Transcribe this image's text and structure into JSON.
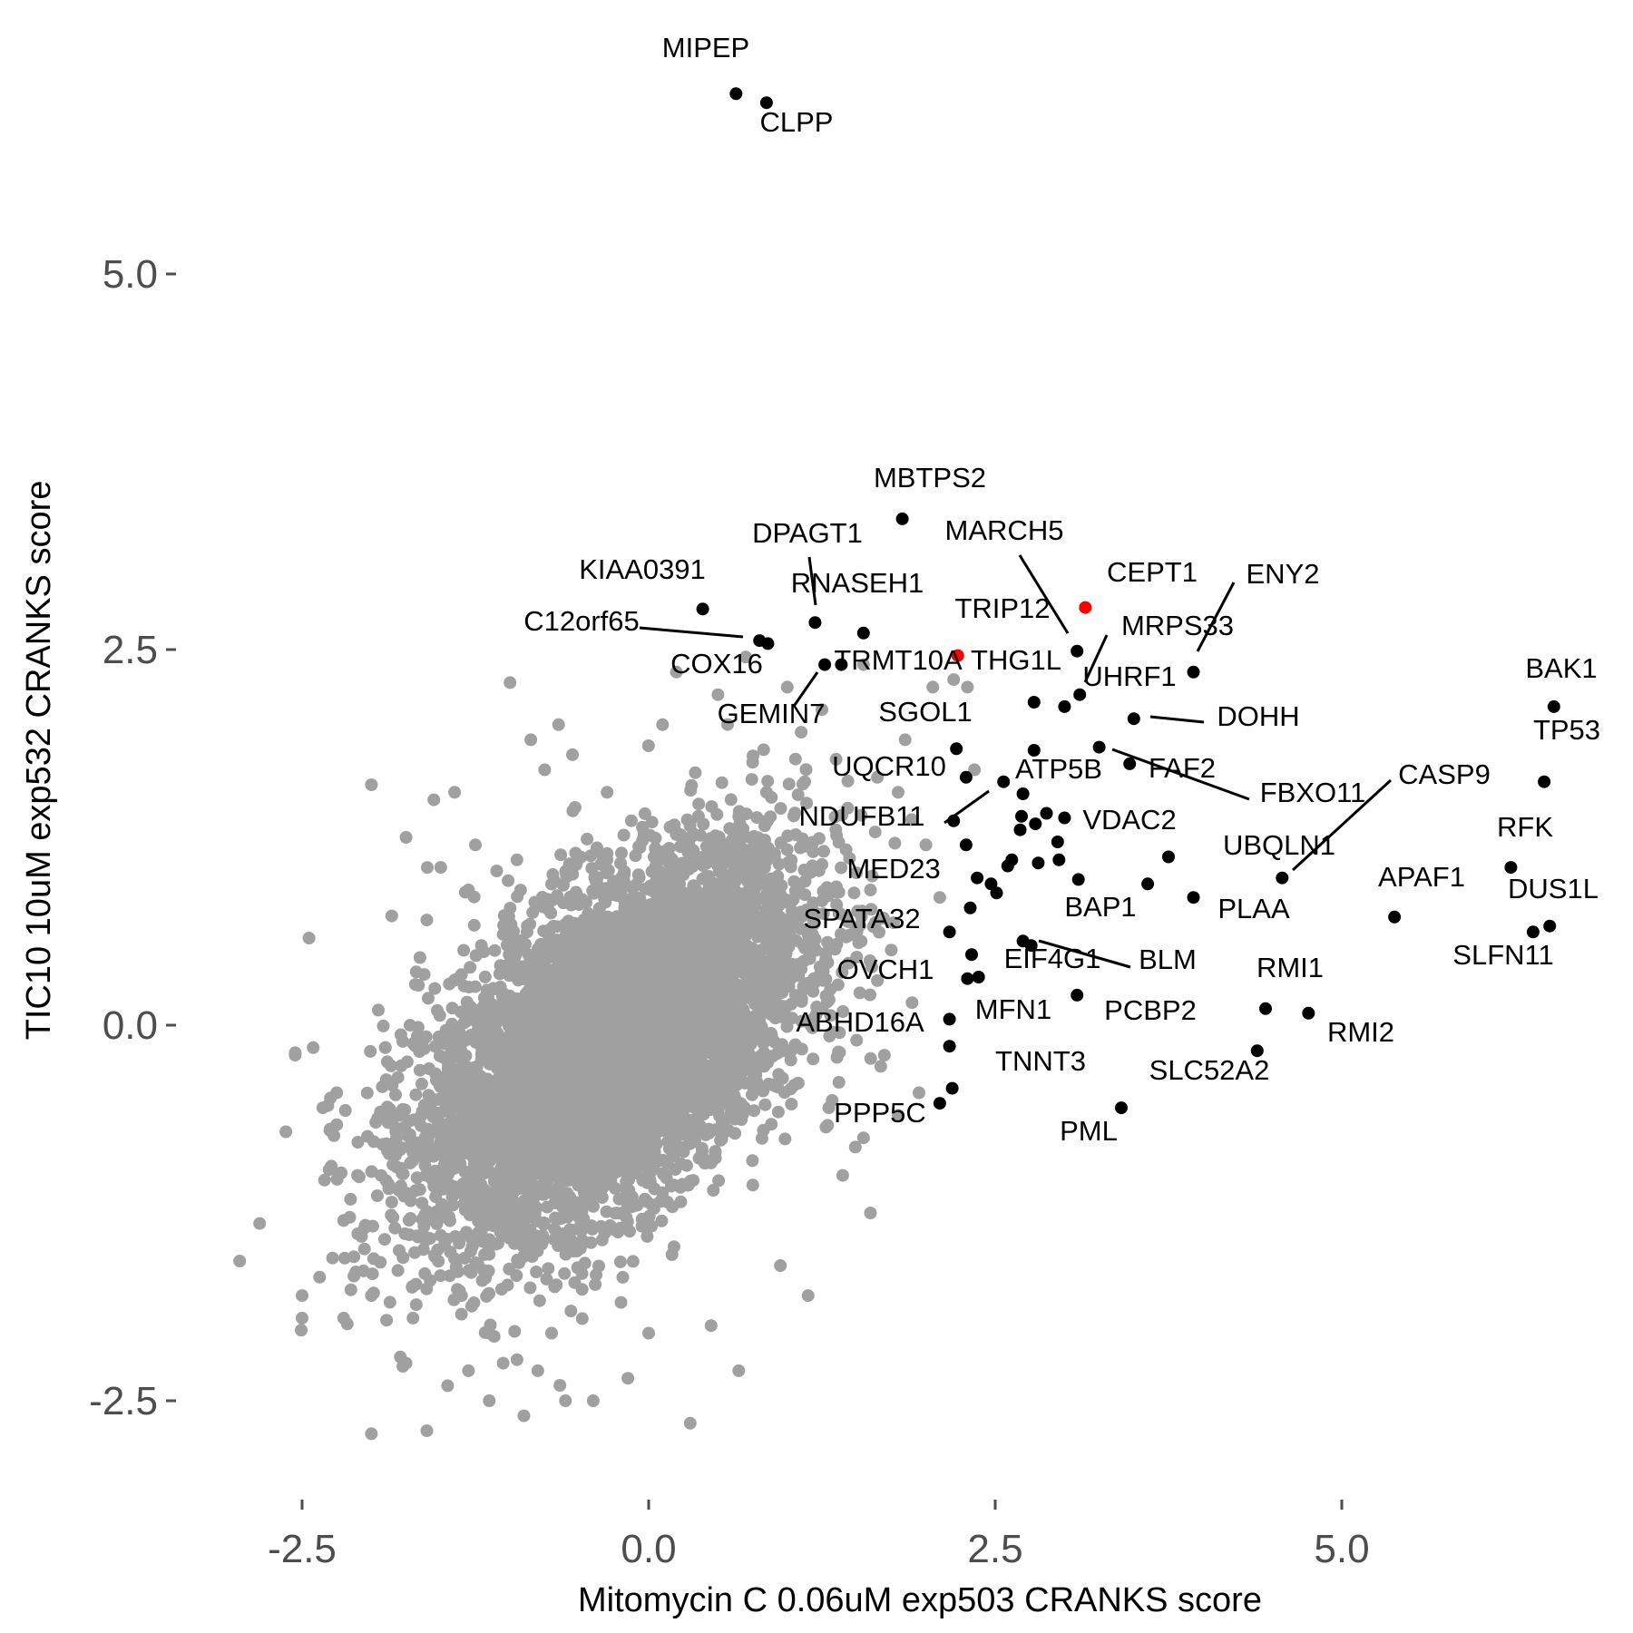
{
  "chart_data": {
    "type": "scatter",
    "xlabel": "Mitomycin C 0.06uM exp503 CRANKS score",
    "ylabel": "TIC10 10uM exp532 CRANKS score",
    "xlim": [
      -3.1,
      6.8
    ],
    "ylim": [
      -3.1,
      6.6
    ],
    "x_ticks": [
      {
        "value": -2.5,
        "label": "-2.5"
      },
      {
        "value": 0.0,
        "label": "0.0"
      },
      {
        "value": 2.5,
        "label": "2.5"
      },
      {
        "value": 5.0,
        "label": "5.0"
      }
    ],
    "y_ticks": [
      {
        "value": -2.5,
        "label": "-2.5"
      },
      {
        "value": 0.0,
        "label": "0.0"
      },
      {
        "value": 2.5,
        "label": "2.5"
      },
      {
        "value": 5.0,
        "label": "5.0"
      }
    ],
    "grid": false,
    "colors": {
      "background": "#ffffff",
      "bulk": "#a0a0a0",
      "highlight": "#000000",
      "special": "#ff0000"
    },
    "background_cloud": {
      "description_points": "thousands of unlabeled grey genes",
      "outliers": [
        [
          -2.95,
          -1.57
        ],
        [
          -2.5,
          -1.8
        ],
        [
          -2.5,
          -1.95
        ],
        [
          -2.45,
          0.58
        ],
        [
          -2.42,
          -0.15
        ],
        [
          -2.35,
          -0.55
        ],
        [
          -2.3,
          -0.7
        ],
        [
          -2.28,
          -1.55
        ],
        [
          -2.2,
          -1.95
        ],
        [
          -2.2,
          -1.3
        ],
        [
          -2.1,
          -1.0
        ],
        [
          -2.05,
          -1.35
        ],
        [
          -2.0,
          -1.8
        ],
        [
          -2.0,
          1.6
        ],
        [
          -2.0,
          -2.72
        ],
        [
          -1.9,
          -0.15
        ],
        [
          -1.85,
          -0.4
        ],
        [
          -1.8,
          -1.5
        ],
        [
          -1.8,
          -0.6
        ],
        [
          -1.8,
          -1.1
        ],
        [
          -1.75,
          -2.25
        ],
        [
          -1.75,
          1.25
        ],
        [
          -1.7,
          -1.95
        ],
        [
          -1.7,
          -0.9
        ],
        [
          -1.65,
          -0.3
        ],
        [
          -1.6,
          -2.7
        ],
        [
          -1.6,
          0.7
        ],
        [
          -1.55,
          1.5
        ],
        [
          -1.5,
          -1.4
        ],
        [
          -1.5,
          1.05
        ],
        [
          -1.45,
          -2.4
        ],
        [
          -1.4,
          0.3
        ],
        [
          -1.35,
          -1.8
        ],
        [
          -1.3,
          -2.3
        ],
        [
          -1.3,
          0.9
        ],
        [
          -1.25,
          1.2
        ],
        [
          -1.2,
          -1.7
        ],
        [
          -1.15,
          -2.05
        ],
        [
          -1.15,
          -2.5
        ],
        [
          -1.1,
          -0.8
        ],
        [
          -1.05,
          -2.25
        ],
        [
          -1.0,
          2.28
        ],
        [
          -0.95,
          1.1
        ],
        [
          -0.9,
          -2.6
        ],
        [
          -0.85,
          1.9
        ],
        [
          -0.8,
          -2.3
        ],
        [
          -0.75,
          1.7
        ],
        [
          -0.7,
          -2.05
        ],
        [
          -0.65,
          2.0
        ],
        [
          -0.55,
          1.8
        ],
        [
          -0.4,
          -2.5
        ],
        [
          -0.3,
          1.55
        ],
        [
          -0.15,
          -2.35
        ],
        [
          0.0,
          -2.05
        ],
        [
          0.1,
          2.0
        ],
        [
          0.3,
          -2.65
        ],
        [
          0.45,
          -2.0
        ],
        [
          0.5,
          2.2
        ],
        [
          0.6,
          1.3
        ],
        [
          0.75,
          1.75
        ],
        [
          0.85,
          1.55
        ],
        [
          0.95,
          -1.6
        ],
        [
          1.05,
          -0.4
        ],
        [
          1.1,
          1.95
        ],
        [
          1.15,
          -1.8
        ],
        [
          1.25,
          0.3
        ],
        [
          1.3,
          -0.55
        ],
        [
          1.35,
          1.3
        ],
        [
          1.4,
          -1.0
        ],
        [
          1.5,
          -0.1
        ],
        [
          1.55,
          -0.75
        ],
        [
          1.6,
          0.9
        ],
        [
          1.65,
          1.65
        ],
        [
          1.7,
          -0.2
        ],
        [
          1.75,
          0.5
        ],
        [
          1.8,
          -0.6
        ],
        [
          1.85,
          1.9
        ],
        [
          1.9,
          0.15
        ],
        [
          1.95,
          -0.45
        ],
        [
          2.0,
          1.2
        ],
        [
          2.05,
          2.25
        ],
        [
          1.55,
          2.4
        ],
        [
          1.0,
          2.25
        ],
        [
          0.2,
          2.35
        ],
        [
          0.7,
          2.45
        ],
        [
          1.25,
          2.1
        ],
        [
          1.8,
          1.55
        ],
        [
          2.1,
          0.85
        ],
        [
          2.2,
          2.3
        ],
        [
          2.3,
          2.25
        ],
        [
          2.35,
          1.7
        ],
        [
          1.45,
          0.6
        ],
        [
          1.6,
          -1.25
        ],
        [
          0.65,
          -2.3
        ],
        [
          -0.6,
          -2.5
        ],
        [
          -2.55,
          -0.2
        ],
        [
          -2.25,
          -0.45
        ],
        [
          -1.95,
          0.1
        ],
        [
          -1.65,
          0.45
        ],
        [
          -1.4,
          1.55
        ]
      ]
    },
    "points": [
      {
        "label": "MIPEP",
        "x": 0.63,
        "y": 6.2,
        "color": "#000000"
      },
      {
        "label": "CLPP",
        "x": 0.85,
        "y": 6.14,
        "color": "#000000"
      },
      {
        "label": "MBTPS2",
        "x": 1.83,
        "y": 3.37,
        "color": "#000000"
      },
      {
        "label": "DPAGT1",
        "x": 1.2,
        "y": 2.68,
        "color": "#000000"
      },
      {
        "label": "KIAA0391",
        "x": 0.39,
        "y": 2.77,
        "color": "#000000"
      },
      {
        "label": "RNASEH1",
        "x": 1.55,
        "y": 2.61,
        "color": "#000000"
      },
      {
        "label": "C12orf65",
        "x": 0.8,
        "y": 2.56,
        "color": "#000000"
      },
      {
        "label": "COX16",
        "x": 0.86,
        "y": 2.54,
        "color": "#000000"
      },
      {
        "label": "GEMIN7",
        "x": 1.27,
        "y": 2.4,
        "color": "#000000"
      },
      {
        "label": "TRMT10A",
        "x": 1.39,
        "y": 2.4,
        "color": "#000000"
      },
      {
        "label": "MARCH5",
        "x": 3.09,
        "y": 2.49,
        "color": "#000000"
      },
      {
        "label": "CEPT1",
        "x": 3.15,
        "y": 2.78,
        "color": "#ff0000"
      },
      {
        "label": "TRIP12",
        "x": 2.23,
        "y": 2.46,
        "color": "#ff0000"
      },
      {
        "label": "ENY2",
        "x": 3.93,
        "y": 2.35,
        "color": "#000000"
      },
      {
        "label": "MRPS33",
        "x": 3.11,
        "y": 2.2,
        "color": "#000000"
      },
      {
        "label": "THG1L",
        "x": 2.78,
        "y": 2.15,
        "color": "#000000"
      },
      {
        "label": "UHRF1",
        "x": 3.0,
        "y": 2.12,
        "color": "#000000"
      },
      {
        "label": "BAK1",
        "x": 6.53,
        "y": 2.12,
        "color": "#000000"
      },
      {
        "label": "DOHH",
        "x": 3.5,
        "y": 2.04,
        "color": "#000000"
      },
      {
        "label": "SGOL1",
        "x": 2.22,
        "y": 1.84,
        "color": "#000000"
      },
      {
        "label": "FBXO11",
        "x": 3.25,
        "y": 1.85,
        "color": "#000000"
      },
      {
        "label": "FAF2",
        "x": 3.47,
        "y": 1.74,
        "color": "#000000"
      },
      {
        "label": "TP53",
        "x": 6.46,
        "y": 1.62,
        "color": "#000000"
      },
      {
        "label": "UQCR10",
        "x": 2.29,
        "y": 1.65,
        "color": "#000000"
      },
      {
        "label": "ATP5B",
        "x": 2.56,
        "y": 1.62,
        "color": "#000000"
      },
      {
        "label": "NDUFB11",
        "x": 2.2,
        "y": 1.36,
        "color": "#000000"
      },
      {
        "label": "CASP9",
        "x": 4.57,
        "y": 0.98,
        "color": "#000000"
      },
      {
        "label": "VDAC2",
        "x": 2.95,
        "y": 1.22,
        "color": "#000000"
      },
      {
        "label": "UBQLN1",
        "x": 3.75,
        "y": 1.12,
        "color": "#000000"
      },
      {
        "label": "RFK",
        "x": 6.22,
        "y": 1.05,
        "color": "#000000"
      },
      {
        "label": "MED23",
        "x": 2.29,
        "y": 1.2,
        "color": "#000000"
      },
      {
        "label": "BAP1",
        "x": 3.6,
        "y": 0.94,
        "color": "#000000"
      },
      {
        "label": "PLAA",
        "x": 3.93,
        "y": 0.85,
        "color": "#000000"
      },
      {
        "label": "APAF1",
        "x": 5.38,
        "y": 0.72,
        "color": "#000000"
      },
      {
        "label": "DUS1L",
        "x": 6.5,
        "y": 0.66,
        "color": "#000000"
      },
      {
        "label": "SLFN11",
        "x": 6.38,
        "y": 0.62,
        "color": "#000000"
      },
      {
        "label": "SPATA32",
        "x": 2.17,
        "y": 0.62,
        "color": "#000000"
      },
      {
        "label": "EIF4G1",
        "x": 2.7,
        "y": 0.56,
        "color": "#000000"
      },
      {
        "label": "BLM",
        "x": 2.76,
        "y": 0.53,
        "color": "#000000"
      },
      {
        "label": "OVCH1",
        "x": 2.3,
        "y": 0.31,
        "color": "#000000"
      },
      {
        "label": "PCBP2",
        "x": 3.09,
        "y": 0.2,
        "color": "#000000"
      },
      {
        "label": "RMI1",
        "x": 4.45,
        "y": 0.11,
        "color": "#000000"
      },
      {
        "label": "RMI2",
        "x": 4.76,
        "y": 0.08,
        "color": "#000000"
      },
      {
        "label": "MFN1",
        "x": 2.17,
        "y": 0.04,
        "color": "#000000"
      },
      {
        "label": "ABHD16A",
        "x": 2.17,
        "y": -0.14,
        "color": "#000000"
      },
      {
        "label": "SLC52A2",
        "x": 4.39,
        "y": -0.17,
        "color": "#000000"
      },
      {
        "label": "TNNT3",
        "x": 2.19,
        "y": -0.42,
        "color": "#000000"
      },
      {
        "label": "PPP5C",
        "x": 2.1,
        "y": -0.52,
        "color": "#000000"
      },
      {
        "label": "PML",
        "x": 3.41,
        "y": -0.55,
        "color": "#000000"
      }
    ],
    "unlabeled_black_points": [
      [
        2.38,
        0.32
      ],
      [
        2.33,
        0.47
      ],
      [
        2.32,
        0.78
      ],
      [
        2.37,
        0.98
      ],
      [
        2.47,
        0.94
      ],
      [
        2.51,
        0.88
      ],
      [
        2.59,
        1.06
      ],
      [
        2.62,
        1.1
      ],
      [
        2.81,
        1.08
      ],
      [
        2.96,
        1.1
      ],
      [
        3.1,
        0.97
      ],
      [
        2.68,
        1.3
      ],
      [
        2.69,
        1.39
      ],
      [
        2.79,
        1.34
      ],
      [
        2.87,
        1.41
      ],
      [
        3.0,
        1.38
      ],
      [
        2.78,
        1.83
      ],
      [
        2.7,
        1.54
      ]
    ]
  }
}
